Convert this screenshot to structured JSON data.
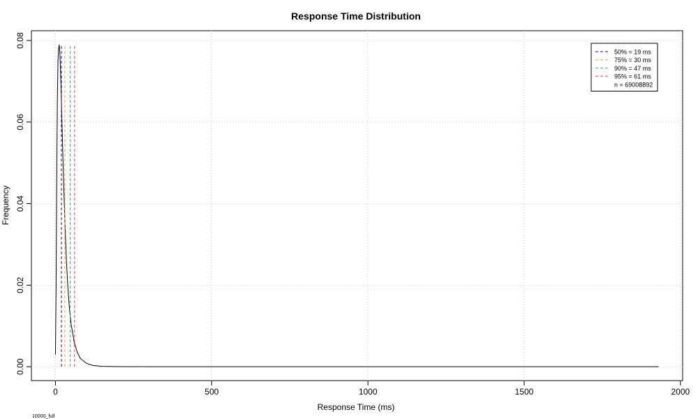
{
  "chart_data": {
    "type": "line",
    "title": "Response Time Distribution",
    "x_label": "Response Time (ms)",
    "y_label": "Frequency",
    "x": [
      0,
      2,
      4,
      6,
      8,
      10,
      12,
      14,
      16,
      18,
      20,
      25,
      30,
      35,
      40,
      45,
      50,
      60,
      70,
      80,
      100,
      120,
      150,
      200,
      300,
      500,
      1000,
      1500,
      1930
    ],
    "values": [
      0.003,
      0.02,
      0.045,
      0.065,
      0.075,
      0.078,
      0.079,
      0.077,
      0.073,
      0.068,
      0.062,
      0.048,
      0.036,
      0.026,
      0.019,
      0.014,
      0.0105,
      0.006,
      0.0035,
      0.002,
      0.0008,
      0.0003,
      0.0001,
      3e-05,
      1e-05,
      0,
      0,
      0,
      0
    ],
    "color": "#000000",
    "percentiles": [
      {
        "label": "50% = 19 ms",
        "value": 19,
        "color": "#0000ff"
      },
      {
        "label": "75% = 30 ms",
        "value": 30,
        "color": "#ffa500"
      },
      {
        "label": "90% = 47 ms",
        "value": 47,
        "color": "#3cb371"
      },
      {
        "label": "95% = 61 ms",
        "value": 61,
        "color": "#ff3060"
      }
    ],
    "legend_note": "n = 69008892",
    "footnote": "10000_full",
    "xlim": [
      -77,
      2007
    ],
    "xticks": [
      0,
      500,
      1000,
      1500,
      2000
    ],
    "ylim": [
      -0.0034,
      0.0824
    ],
    "yticks": [
      {
        "value": 0,
        "label": "0.00"
      },
      0.02,
      0.04,
      0.06,
      0.08
    ],
    "grid": true,
    "legend": "top-right"
  }
}
